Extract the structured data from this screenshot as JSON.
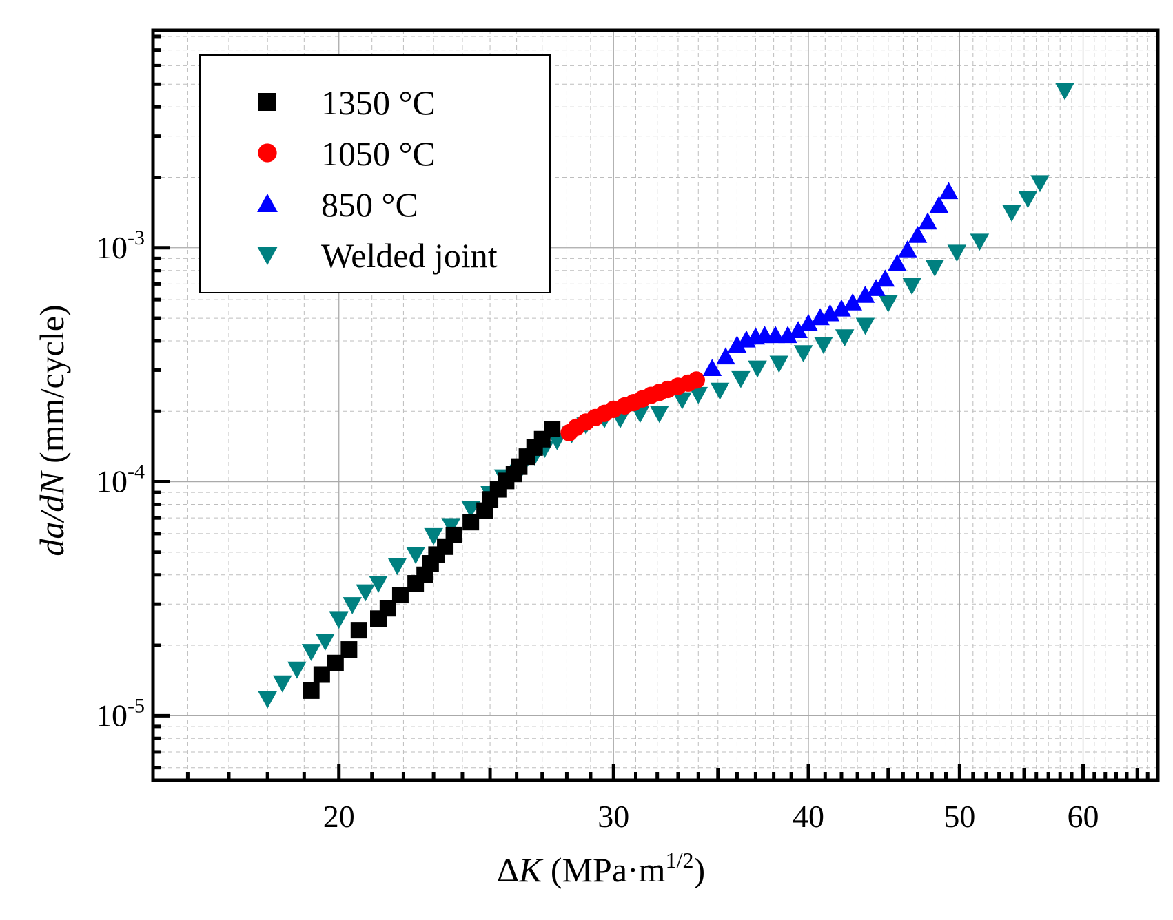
{
  "chart_data": {
    "type": "scatter",
    "xscale": "log",
    "yscale": "log",
    "xlim": [
      15.2,
      67
    ],
    "ylim": [
      5.3e-06,
      0.0085
    ],
    "grid": true,
    "legend_position": "top-left",
    "xlabel": {
      "prefix": "Δ",
      "var": "K",
      "unit_open": " (MPa·m",
      "exp": "1/2",
      "unit_close": ")"
    },
    "ylabel": {
      "var1": "da",
      "slash": "/",
      "var2": "dN",
      "unit": " (mm/cycle)"
    },
    "x_ticks": [
      {
        "value": 20,
        "label": "20"
      },
      {
        "value": 30,
        "label": "30"
      },
      {
        "value": 40,
        "label": "40"
      },
      {
        "value": 50,
        "label": "50"
      },
      {
        "value": 60,
        "label": "60"
      }
    ],
    "y_ticks": [
      {
        "value": 1e-05,
        "base": "10",
        "exp": "-5"
      },
      {
        "value": 0.0001,
        "base": "10",
        "exp": "-4"
      },
      {
        "value": 0.001,
        "base": "10",
        "exp": "-3"
      }
    ],
    "series": [
      {
        "name": "1350 °C",
        "marker": "square",
        "color": "#000000",
        "points": [
          [
            19.2,
            1.28e-05
          ],
          [
            19.5,
            1.5e-05
          ],
          [
            19.9,
            1.68e-05
          ],
          [
            20.3,
            1.92e-05
          ],
          [
            20.6,
            2.32e-05
          ],
          [
            21.2,
            2.6e-05
          ],
          [
            21.5,
            2.88e-05
          ],
          [
            21.9,
            3.28e-05
          ],
          [
            22.4,
            3.68e-05
          ],
          [
            22.7,
            4e-05
          ],
          [
            22.9,
            4.48e-05
          ],
          [
            23.1,
            4.88e-05
          ],
          [
            23.4,
            5.28e-05
          ],
          [
            23.7,
            5.92e-05
          ],
          [
            24.3,
            6.72e-05
          ],
          [
            24.8,
            7.52e-05
          ],
          [
            25.0,
            8.4e-05
          ],
          [
            25.3,
            9.28e-05
          ],
          [
            25.6,
            0.0001008
          ],
          [
            25.9,
            0.000108
          ],
          [
            26.1,
            0.000116
          ],
          [
            26.4,
            0.000128
          ],
          [
            26.7,
            0.00014
          ],
          [
            27.0,
            0.000152
          ],
          [
            27.4,
            0.000168
          ]
        ]
      },
      {
        "name": "1050 °C",
        "marker": "circle",
        "color": "#ff0000",
        "points": [
          [
            28.1,
            0.000162
          ],
          [
            28.4,
            0.000171
          ],
          [
            28.8,
            0.00018
          ],
          [
            29.2,
            0.000188
          ],
          [
            29.6,
            0.000196
          ],
          [
            30.0,
            0.000204
          ],
          [
            30.5,
            0.000211
          ],
          [
            30.9,
            0.000218
          ],
          [
            31.3,
            0.000226
          ],
          [
            31.7,
            0.000234
          ],
          [
            32.1,
            0.000241
          ],
          [
            32.5,
            0.000248
          ],
          [
            33.0,
            0.000256
          ],
          [
            33.5,
            0.000264
          ],
          [
            33.9,
            0.000272
          ]
        ]
      },
      {
        "name": "850 °C",
        "marker": "triangle-up",
        "color": "#0000ff",
        "points": [
          [
            34.7,
            0.000305
          ],
          [
            35.4,
            0.000342
          ],
          [
            36.0,
            0.000384
          ],
          [
            36.5,
            0.000404
          ],
          [
            37.0,
            0.000416
          ],
          [
            37.5,
            0.000422
          ],
          [
            38.1,
            0.000422
          ],
          [
            38.8,
            0.000422
          ],
          [
            39.4,
            0.000443
          ],
          [
            40.0,
            0.000475
          ],
          [
            40.7,
            0.000503
          ],
          [
            41.3,
            0.000523
          ],
          [
            42.0,
            0.000548
          ],
          [
            42.7,
            0.000582
          ],
          [
            43.5,
            0.000627
          ],
          [
            44.2,
            0.00067
          ],
          [
            44.8,
            0.000735
          ],
          [
            45.6,
            0.000857
          ],
          [
            46.3,
            0.00098
          ],
          [
            47.0,
            0.00113
          ],
          [
            47.7,
            0.00129
          ],
          [
            48.5,
            0.00152
          ],
          [
            49.2,
            0.00174
          ]
        ]
      },
      {
        "name": "Welded joint",
        "marker": "triangle-down",
        "color": "#008080",
        "points": [
          [
            18.0,
            1.18e-05
          ],
          [
            18.4,
            1.38e-05
          ],
          [
            18.8,
            1.58e-05
          ],
          [
            19.2,
            1.88e-05
          ],
          [
            19.6,
            2.08e-05
          ],
          [
            20.0,
            2.58e-05
          ],
          [
            20.4,
            2.98e-05
          ],
          [
            20.8,
            3.38e-05
          ],
          [
            21.2,
            3.68e-05
          ],
          [
            21.8,
            4.38e-05
          ],
          [
            22.4,
            4.88e-05
          ],
          [
            23.0,
            5.88e-05
          ],
          [
            23.6,
            6.48e-05
          ],
          [
            24.3,
            7.68e-05
          ],
          [
            25.0,
            8.88e-05
          ],
          [
            25.5,
            0.0001048
          ],
          [
            26.1,
            0.0001098
          ],
          [
            26.7,
            0.0001288
          ],
          [
            27.1,
            0.0001388
          ],
          [
            27.6,
            0.0001498
          ],
          [
            28.2,
            0.0001598
          ],
          [
            28.8,
            0.0001748
          ],
          [
            29.6,
            0.0001858
          ],
          [
            30.3,
            0.0001858
          ],
          [
            31.2,
            0.0001958
          ],
          [
            32.1,
            0.0001958
          ],
          [
            33.2,
            0.0002238
          ],
          [
            34.0,
            0.0002358
          ],
          [
            35.1,
            0.0002458
          ],
          [
            36.2,
            0.0002758
          ],
          [
            37.1,
            0.0003058
          ],
          [
            38.3,
            0.0003208
          ],
          [
            39.7,
            0.0003558
          ],
          [
            40.9,
            0.0003858
          ],
          [
            42.2,
            0.0004158
          ],
          [
            43.5,
            0.0004658
          ],
          [
            45.0,
            0.0005808
          ],
          [
            46.6,
            0.0006908
          ],
          [
            48.2,
            0.0008258
          ],
          [
            49.8,
            0.0009558
          ],
          [
            51.5,
            0.0010658
          ],
          [
            54.0,
            0.0014158
          ],
          [
            55.3,
            0.0016208
          ],
          [
            56.3,
            0.0018958
          ],
          [
            58.4,
            0.0046958
          ]
        ]
      }
    ]
  }
}
